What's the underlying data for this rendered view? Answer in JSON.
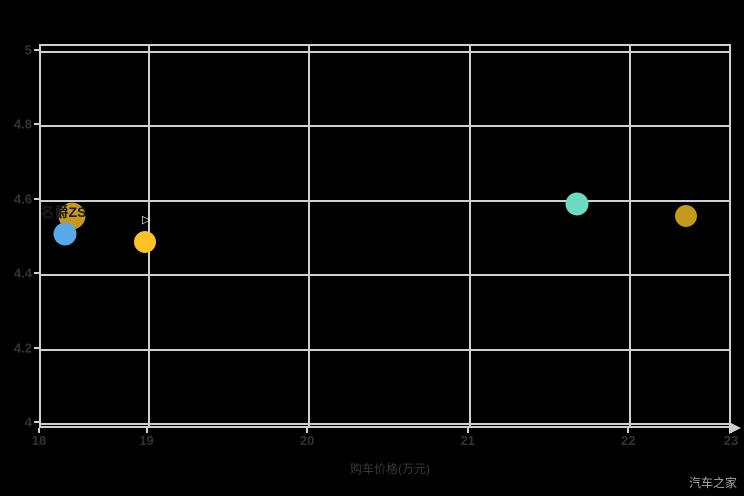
{
  "watermark": "汽车之家",
  "chart_data": {
    "type": "scatter",
    "title": "",
    "xlabel": "购车价格(万元)",
    "ylabel": "",
    "xlim": [
      18.33,
      22.64
    ],
    "ylim": [
      3.985,
      5.015
    ],
    "grid": true,
    "background": "#000000",
    "gridline_color": "#cfcfcf",
    "tick_label_color": "#333333",
    "x_ticks": [
      {
        "label": "18",
        "value": 18.33,
        "edge": true
      },
      {
        "label": "19",
        "value": 19,
        "edge": false
      },
      {
        "label": "20",
        "value": 20,
        "edge": false
      },
      {
        "label": "21",
        "value": 21,
        "edge": false
      },
      {
        "label": "22",
        "value": 22,
        "edge": false
      },
      {
        "label": "23",
        "value": 22.64,
        "edge": true
      }
    ],
    "y_ticks": [
      {
        "label": "5",
        "value": 5.0
      },
      {
        "label": "4.8",
        "value": 4.8
      },
      {
        "label": "4.6",
        "value": 4.6
      },
      {
        "label": "4.4",
        "value": 4.4
      },
      {
        "label": "4.2",
        "value": 4.2
      },
      {
        "label": "4",
        "value": 4.0
      }
    ],
    "points": [
      {
        "label": "名爵ZS",
        "x": 18.52,
        "y": 4.56,
        "color": "#c6991c",
        "diameter": 27,
        "show_label": true,
        "label_offset": [
          -8,
          -4
        ]
      },
      {
        "label": "",
        "x": 18.48,
        "y": 4.51,
        "color": "#57a9e8",
        "diameter": 23,
        "show_label": false
      },
      {
        "label": "",
        "x": 18.98,
        "y": 4.49,
        "color": "#fdc225",
        "diameter": 22,
        "show_label": false
      },
      {
        "label": "",
        "x": 21.67,
        "y": 4.59,
        "color": "#6bdcc0",
        "diameter": 23,
        "show_label": false
      },
      {
        "label": "",
        "x": 22.35,
        "y": 4.56,
        "color": "#c49a1b",
        "diameter": 22,
        "show_label": false
      }
    ]
  },
  "cursor_icon": "▷"
}
